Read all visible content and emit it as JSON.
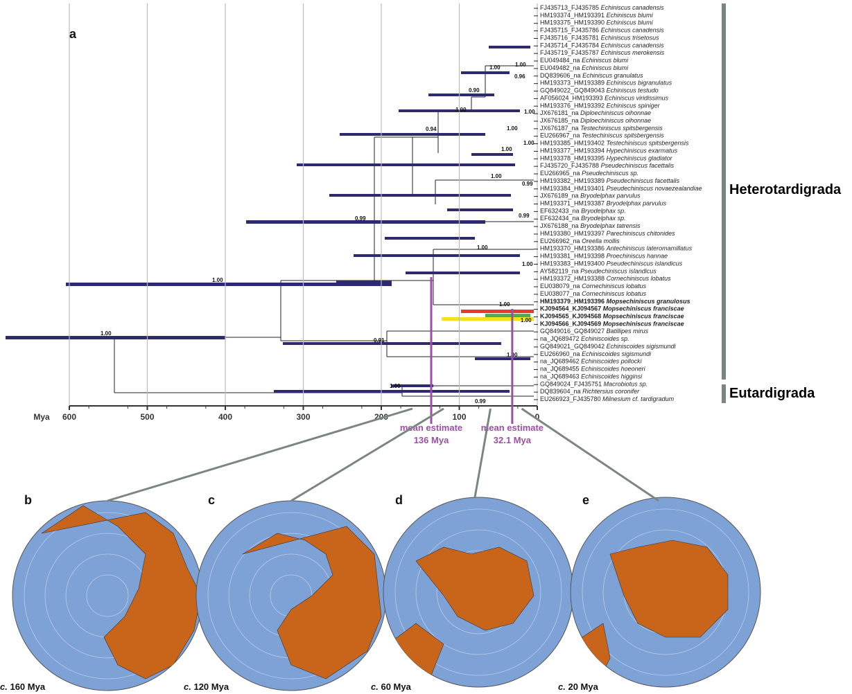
{
  "figure": {
    "panel_a": "a",
    "axis": {
      "unit": "Mya",
      "xlim": [
        600,
        0
      ],
      "xticks": [
        600,
        500,
        400,
        300,
        200,
        100,
        0
      ]
    },
    "taxa": [
      {
        "id": "FJ435713_FJ435785",
        "species": "Echiniscus canadensis"
      },
      {
        "id": "HM193374_HM193391",
        "species": "Echiniscus blumi"
      },
      {
        "id": "HM193375_HM193390",
        "species": "Echiniscus blumi"
      },
      {
        "id": "FJ435715_FJ435786",
        "species": "Echiniscus canadensis"
      },
      {
        "id": "FJ435716_FJ435781",
        "species": "Echiniscus trisetosus"
      },
      {
        "id": "FJ435714_FJ435784",
        "species": "Echiniscus canadensis"
      },
      {
        "id": "FJ435719_FJ435787",
        "species": "Echiniscus merokensis"
      },
      {
        "id": "EU049484_na",
        "species": "Echiniscus blumi"
      },
      {
        "id": "EU049482_na",
        "species": "Echiniscus blumi"
      },
      {
        "id": "DQ839606_na",
        "species": "Echiniscus granulatus"
      },
      {
        "id": "HM193373_HM193389",
        "species": "Echiniscus bigranulatus"
      },
      {
        "id": "GQ849022_GQ849043",
        "species": "Echiniscus testudo"
      },
      {
        "id": "AF056024_HM193393",
        "species": "Echiniscus viridissimus"
      },
      {
        "id": "HM193376_HM193392",
        "species": "Echiniscus spiniger"
      },
      {
        "id": "JX676181_na",
        "species": "Diploechiniscus oihonnae"
      },
      {
        "id": "JX676185_na",
        "species": "Diploechiniscus oihonnae"
      },
      {
        "id": "JX676187_na",
        "species": "Testechiniscus spitsbergensis"
      },
      {
        "id": "EU266967_na",
        "species": "Testechiniscus spitsbergensis"
      },
      {
        "id": "HM193385_HM193402",
        "species": "Testechiniscus spitsbergensis"
      },
      {
        "id": "HM193377_HM193394",
        "species": "Hypechiniscus exarmatus"
      },
      {
        "id": "HM193378_HM193395",
        "species": "Hypechiniscus gladiator"
      },
      {
        "id": "FJ435720_FJ435788",
        "species": "Pseudechiniscus facettalis"
      },
      {
        "id": "EU266965_na",
        "species": "Pseudechiniscus sp."
      },
      {
        "id": "HM193382_HM193389",
        "species": "Pseudechiniscus facettalis"
      },
      {
        "id": "HM193384_HM193401",
        "species": "Pseudechiniscus novaezealandiae"
      },
      {
        "id": "JX676189_na",
        "species": "Bryodelphax parvulus"
      },
      {
        "id": "HM193371_HM193387",
        "species": "Bryodelphax parvulus"
      },
      {
        "id": "EF632433_na",
        "species": "Bryodelphax sp."
      },
      {
        "id": "EF632434_na",
        "species": "Bryodelphax sp."
      },
      {
        "id": "JX676188_na",
        "species": "Bryodelphax tatrensis"
      },
      {
        "id": "HM193380_HM193397",
        "species": "Parechiniscus chitonides"
      },
      {
        "id": "EU266962_na",
        "species": "Oreella mollis"
      },
      {
        "id": "HM193370_HM193386",
        "species": "Antechiniscus lateromamillatus"
      },
      {
        "id": "HM193381_HM193398",
        "species": "Proechiniscus hannae"
      },
      {
        "id": "HM193383_HM193400",
        "species": "Pseudechiniscus islandicus"
      },
      {
        "id": "AY582119_na",
        "species": "Pseudechiniscus islandicus"
      },
      {
        "id": "HM193372_HM193388",
        "species": "Cornechiniscus lobatus"
      },
      {
        "id": "EU038079_na",
        "species": "Cornechiniscus lobatus"
      },
      {
        "id": "EU038077_na",
        "species": "Cornechiniscus lobatus"
      },
      {
        "id": "HM193379_HM193396",
        "species": "Mopsechiniscus granulosus",
        "bold": true
      },
      {
        "id": "KJ094564_KJ094567",
        "species": "Mopsechiniscus franciscae",
        "bold": true
      },
      {
        "id": "KJ094565_KJ094568",
        "species": "Mopsechiniscus franciscae",
        "bold": true
      },
      {
        "id": "KJ094566_KJ094569",
        "species": "Mopsechiniscus franciscae",
        "bold": true
      },
      {
        "id": "GQ849016_GQ849027",
        "species": "Batillipes mirus"
      },
      {
        "id": "na_JQ689472",
        "species": "Echiniscoides sp."
      },
      {
        "id": "GQ849021_GQ849042",
        "species": "Echiniscoides sigismundi"
      },
      {
        "id": "EU266960_na",
        "species": "Echiniscoides sigismundi"
      },
      {
        "id": "na_JQ689462",
        "species": "Echiniscoides pollocki"
      },
      {
        "id": "na_JQ689455",
        "species": "Echiniscoides hoeoneri"
      },
      {
        "id": "na_JQ689463",
        "species": "Echiniscoides higginsi"
      },
      {
        "id": "GQ849024_FJ435751",
        "species": "Macrobiotus sp."
      },
      {
        "id": "DQ839604_na",
        "species": "Richtersius coronifer"
      },
      {
        "id": "EU266923_FJ435780",
        "species": "Milnesium cf. tardigradum"
      }
    ],
    "supports": [
      "1.00",
      "0.96",
      "1.00",
      "0.90",
      "1.00",
      "1.00",
      "0.94",
      "1.00",
      "1.00",
      "1.00",
      "1.00",
      "0.99",
      "0.99",
      "0.99",
      "1.00",
      "1.00",
      "1.00",
      "1.00",
      "1.00",
      "1.00",
      "0.91",
      "1.00",
      "1.00",
      "0.99"
    ],
    "clades": [
      "Heterotardigrada",
      "Eutardigrada"
    ],
    "estimates": [
      {
        "title": "mean estimate",
        "value": 136,
        "label": "136 Mya"
      },
      {
        "title": "mean estimate",
        "value": 32.1,
        "label": "32.1 Mya"
      }
    ],
    "maps": [
      {
        "panel": "b",
        "prefix": "c.",
        "age": 160,
        "age_label": "160 Mya"
      },
      {
        "panel": "c",
        "prefix": "c.",
        "age": 120,
        "age_label": "120 Mya"
      },
      {
        "panel": "d",
        "prefix": "c.",
        "age": 60,
        "age_label": "60 Mya"
      },
      {
        "panel": "e",
        "prefix": "c.",
        "age": 20,
        "age_label": "20 Mya"
      }
    ]
  }
}
